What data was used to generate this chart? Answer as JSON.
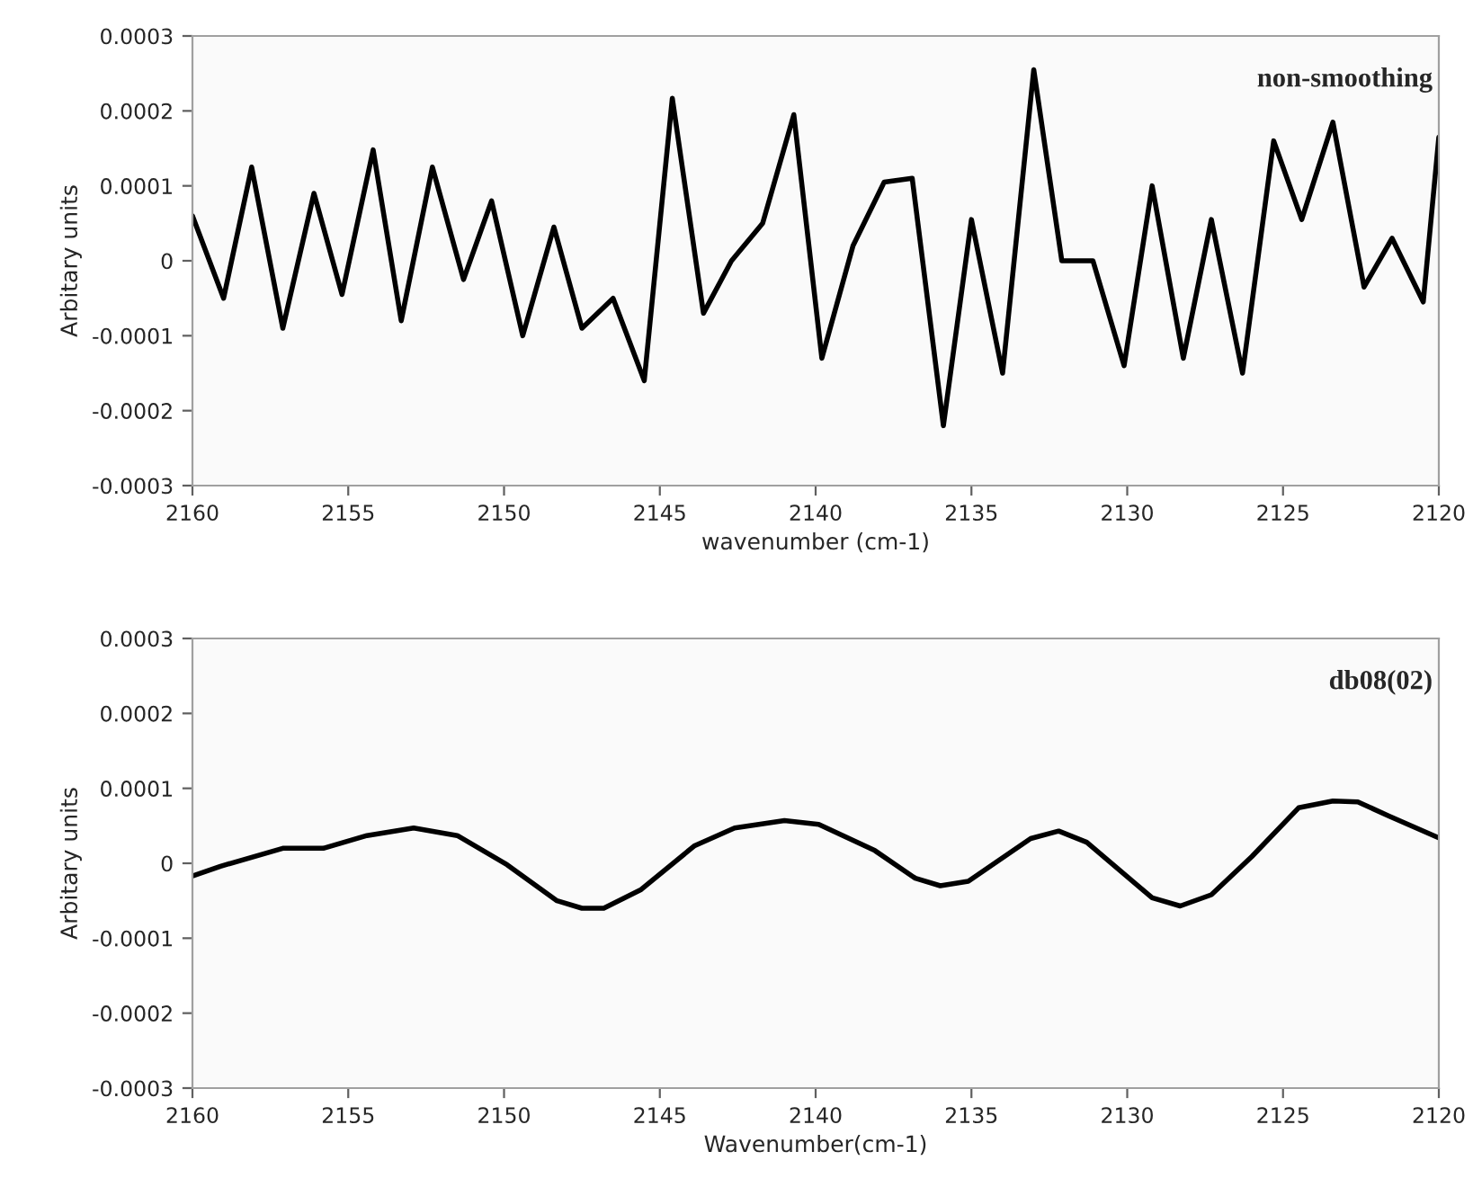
{
  "chart_data": [
    {
      "type": "line",
      "xlabel": "wavenumber (cm-1)",
      "ylabel": "Arbitary units",
      "annotations": [
        "non-smoothing"
      ],
      "xlim": [
        2160,
        2120
      ],
      "xticks": [
        2160,
        2155,
        2150,
        2145,
        2140,
        2135,
        2130,
        2125,
        2120
      ],
      "ylim": [
        -0.0003,
        0.0003
      ],
      "yticks": [
        -0.0003,
        -0.0002,
        -0.0001,
        0,
        0.0001,
        0.0002,
        0.0003
      ],
      "grid": false,
      "marker": "none",
      "line_style": "solid",
      "series": [
        {
          "color": "#000000",
          "x": [
            2160,
            2159.0,
            2158.1,
            2157.1,
            2156.1,
            2155.2,
            2154.2,
            2153.3,
            2152.3,
            2151.3,
            2150.4,
            2149.4,
            2148.4,
            2147.5,
            2146.5,
            2145.5,
            2144.6,
            2143.6,
            2142.7,
            2141.7,
            2140.7,
            2139.8,
            2138.8,
            2137.8,
            2136.9,
            2135.9,
            2135.0,
            2134.0,
            2133.0,
            2132.1,
            2131.1,
            2130.1,
            2129.2,
            2128.2,
            2127.3,
            2126.3,
            2125.3,
            2124.4,
            2123.4,
            2122.4,
            2121.5,
            2120.5,
            2120
          ],
          "values": [
            6e-05,
            -5e-05,
            0.000125,
            -9e-05,
            9e-05,
            -4.5e-05,
            0.000148,
            -8e-05,
            0.000125,
            -2.5e-05,
            8e-05,
            -0.0001,
            4.5e-05,
            -9e-05,
            -5e-05,
            -0.00016,
            0.000217,
            -7e-05,
            0.0,
            5e-05,
            0.000195,
            -0.00013,
            2e-05,
            0.000105,
            0.00011,
            -0.00022,
            5.5e-05,
            -0.00015,
            0.000255,
            0.0,
            0.0,
            -0.00014,
            0.0001,
            -0.00013,
            5.5e-05,
            -0.00015,
            0.00016,
            5.5e-05,
            0.000185,
            -3.5e-05,
            3e-05,
            -5.5e-05,
            0.000165
          ]
        }
      ]
    },
    {
      "type": "line",
      "xlabel": "Wavenumber(cm-1)",
      "ylabel": "Arbitary units",
      "annotations": [
        "db08(02)"
      ],
      "xlim": [
        2160,
        2120
      ],
      "xticks": [
        2160,
        2155,
        2150,
        2145,
        2140,
        2135,
        2130,
        2125,
        2120
      ],
      "ylim": [
        -0.0003,
        0.0003
      ],
      "yticks": [
        -0.0003,
        -0.0002,
        -0.0001,
        0,
        0.0001,
        0.0002,
        0.0003
      ],
      "grid": false,
      "marker": "none",
      "line_style": "solid",
      "series": [
        {
          "color": "#000000",
          "x": [
            2160.0,
            2159.1,
            2157.1,
            2155.8,
            2154.4,
            2152.9,
            2151.5,
            2149.9,
            2148.3,
            2147.5,
            2146.8,
            2145.6,
            2143.9,
            2142.6,
            2141.0,
            2139.9,
            2138.1,
            2136.8,
            2136.0,
            2135.1,
            2133.1,
            2132.2,
            2131.3,
            2129.2,
            2128.3,
            2127.3,
            2126.0,
            2124.5,
            2123.4,
            2122.6,
            2121.6,
            2120
          ],
          "values": [
            -1.7e-05,
            -4e-06,
            2e-05,
            2e-05,
            3.7e-05,
            4.7e-05,
            3.7e-05,
            -2e-06,
            -5e-05,
            -6e-05,
            -6e-05,
            -3.5e-05,
            2.3e-05,
            4.7e-05,
            5.7e-05,
            5.2e-05,
            1.7e-05,
            -2e-05,
            -3e-05,
            -2.4e-05,
            3.3e-05,
            4.3e-05,
            2.8e-05,
            -4.6e-05,
            -5.7e-05,
            -4.2e-05,
            9e-06,
            7.4e-05,
            8.3e-05,
            8.2e-05,
            6.3e-05,
            3.4e-05
          ]
        }
      ]
    }
  ]
}
